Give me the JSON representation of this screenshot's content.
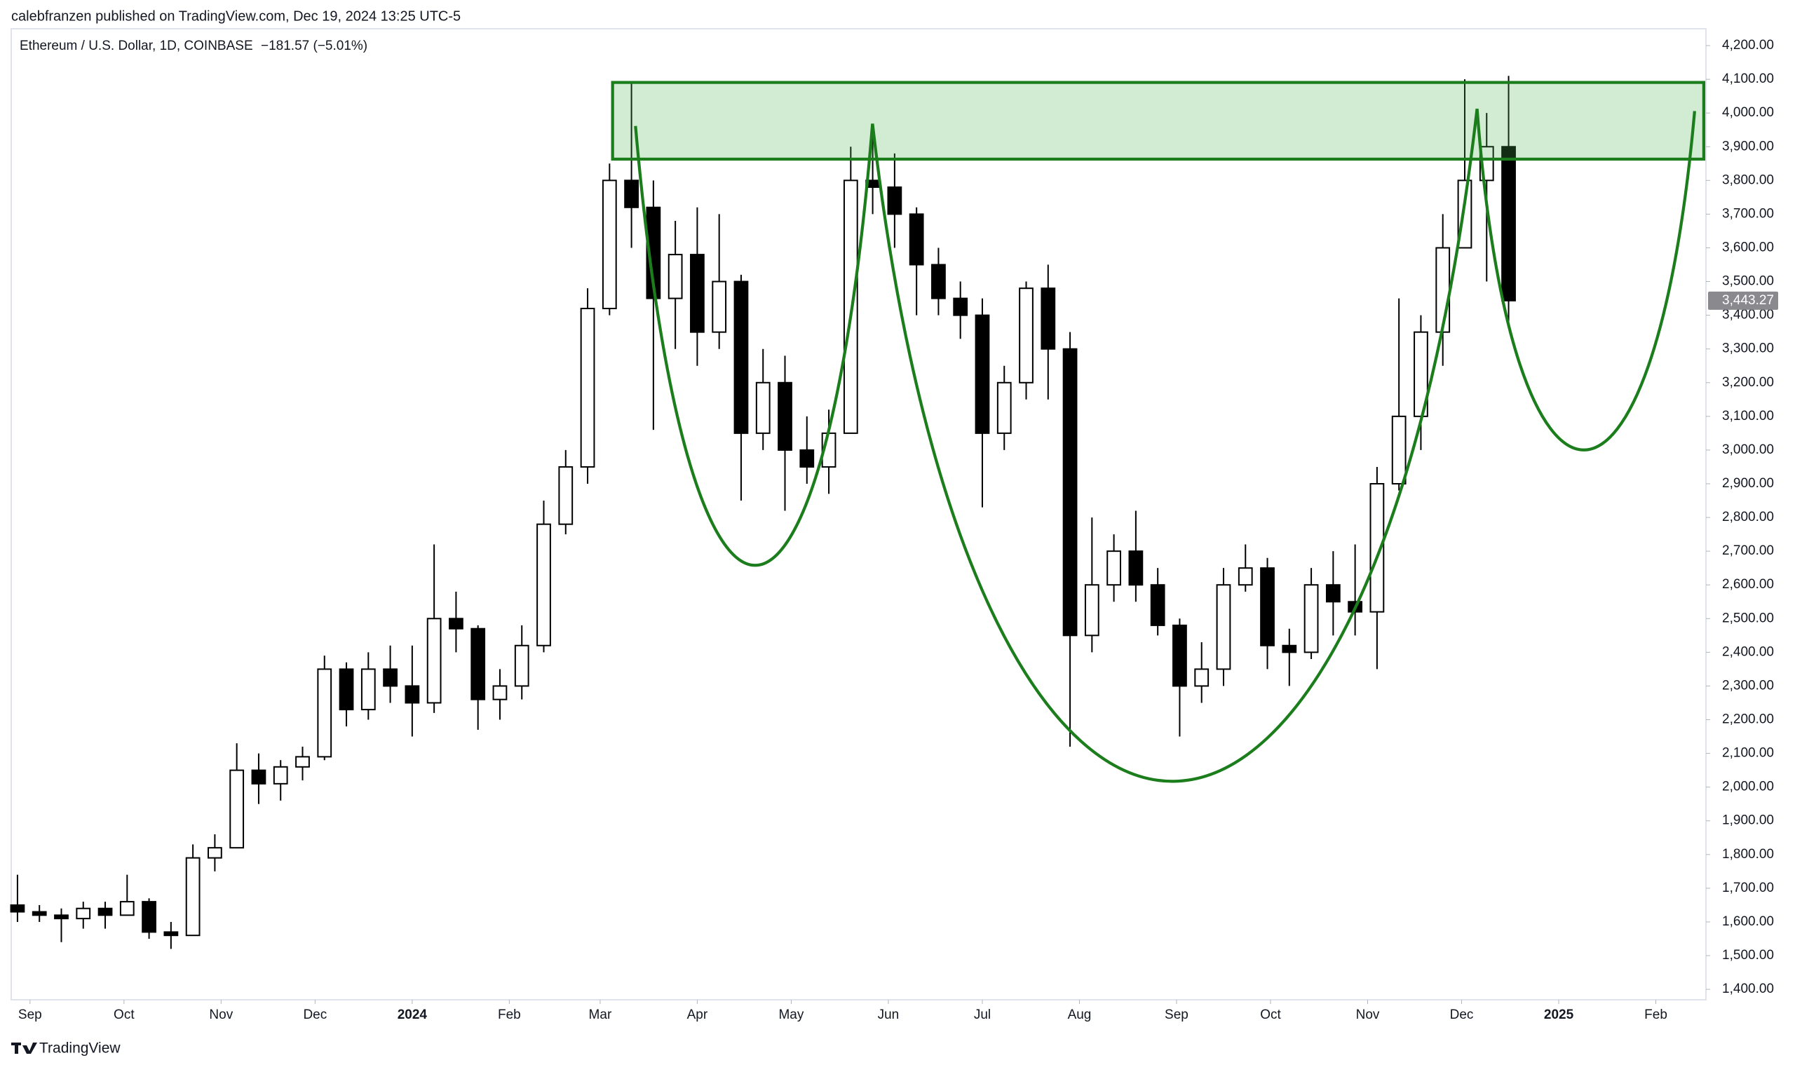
{
  "header": "calebfranzen published on TradingView.com, Dec 19, 2024 13:25 UTC-5",
  "footer": "TradingView",
  "chart_data": {
    "type": "candlestick",
    "title": "Ethereum / U.S. Dollar, 1D, COINBASE",
    "change": "−181.57 (−5.01%)",
    "x": [
      -4,
      3,
      10,
      17,
      24,
      31,
      38,
      45,
      52,
      59,
      66,
      73,
      80,
      87,
      94,
      101,
      108,
      115,
      122,
      129,
      136,
      143,
      150,
      157,
      164,
      171,
      178,
      185,
      192,
      199,
      206,
      213,
      220,
      227,
      234,
      241,
      248,
      255,
      262,
      269,
      276,
      283,
      290,
      297,
      304,
      311,
      318,
      325,
      332,
      339,
      346,
      353,
      360,
      367,
      374,
      381,
      388,
      395,
      402,
      409,
      416,
      423,
      430,
      437,
      444,
      451,
      458,
      465,
      472
    ],
    "open": [
      1650,
      1630,
      1620,
      1610,
      1640,
      1620,
      1660,
      1570,
      1560,
      1790,
      1820,
      2050,
      2010,
      2060,
      2090,
      2350,
      2230,
      2350,
      2300,
      2250,
      2500,
      2470,
      2260,
      2300,
      2420,
      2780,
      2950,
      3420,
      3800,
      3720,
      3450,
      3580,
      3350,
      3500,
      3050,
      3200,
      3000,
      2950,
      3050,
      3800,
      3780,
      3700,
      3550,
      3450,
      3400,
      3050,
      3200,
      3480,
      3300,
      2450,
      2600,
      2700,
      2600,
      2480,
      2300,
      2350,
      2600,
      2650,
      2420,
      2400,
      2600,
      2550,
      2520,
      2900,
      3100,
      3350,
      3600,
      3800,
      3900
    ],
    "high": [
      1740,
      1650,
      1640,
      1660,
      1660,
      1740,
      1670,
      1600,
      1830,
      1860,
      2130,
      2100,
      2080,
      2120,
      2390,
      2370,
      2400,
      2420,
      2420,
      2720,
      2580,
      2480,
      2350,
      2480,
      2850,
      3000,
      3480,
      3850,
      4090,
      3800,
      3680,
      3720,
      3700,
      3520,
      3300,
      3280,
      3100,
      3120,
      3900,
      3940,
      3880,
      3720,
      3600,
      3500,
      3450,
      3250,
      3500,
      3550,
      3350,
      2800,
      2750,
      2820,
      2650,
      2500,
      2430,
      2650,
      2720,
      2680,
      2470,
      2650,
      2700,
      2720,
      2950,
      3450,
      3400,
      3700,
      4100,
      4000,
      4110
    ],
    "low": [
      1600,
      1600,
      1540,
      1580,
      1580,
      1620,
      1550,
      1520,
      1560,
      1750,
      1820,
      1950,
      1960,
      2020,
      2080,
      2180,
      2200,
      2250,
      2150,
      2220,
      2400,
      2170,
      2200,
      2260,
      2400,
      2750,
      2900,
      3400,
      3600,
      3060,
      3300,
      3250,
      3300,
      2850,
      3000,
      2820,
      2900,
      2870,
      3050,
      3700,
      3600,
      3400,
      3400,
      3330,
      2830,
      3000,
      3150,
      3150,
      2120,
      2400,
      2550,
      2550,
      2450,
      2150,
      2250,
      2300,
      2580,
      2350,
      2300,
      2380,
      2450,
      2450,
      2350,
      2880,
      3000,
      3250,
      3600,
      3500,
      3380
    ],
    "close": [
      1630,
      1620,
      1610,
      1640,
      1620,
      1660,
      1570,
      1560,
      1790,
      1820,
      2050,
      2010,
      2060,
      2090,
      2350,
      2230,
      2350,
      2300,
      2250,
      2500,
      2470,
      2260,
      2300,
      2420,
      2780,
      2950,
      3420,
      3800,
      3720,
      3450,
      3580,
      3350,
      3500,
      3050,
      3200,
      3000,
      2950,
      3050,
      3800,
      3780,
      3700,
      3550,
      3450,
      3400,
      3050,
      3200,
      3480,
      3300,
      2450,
      2600,
      2700,
      2600,
      2480,
      2300,
      2350,
      2600,
      2650,
      2420,
      2400,
      2600,
      2550,
      2520,
      2900,
      3100,
      3350,
      3600,
      3800,
      3900,
      3443.27
    ],
    "last_price": {
      "value": 3443.27,
      "label": "3,443.27"
    },
    "xlim": [
      -6,
      535
    ],
    "xticks": [
      {
        "value": 0,
        "label": "Sep"
      },
      {
        "value": 30,
        "label": "Oct"
      },
      {
        "value": 61,
        "label": "Nov"
      },
      {
        "value": 91,
        "label": "Dec"
      },
      {
        "value": 122,
        "label": "2024"
      },
      {
        "value": 153,
        "label": "Feb"
      },
      {
        "value": 182,
        "label": "Mar"
      },
      {
        "value": 213,
        "label": "Apr"
      },
      {
        "value": 243,
        "label": "May"
      },
      {
        "value": 274,
        "label": "Jun"
      },
      {
        "value": 304,
        "label": "Jul"
      },
      {
        "value": 335,
        "label": "Aug"
      },
      {
        "value": 366,
        "label": "Sep"
      },
      {
        "value": 396,
        "label": "Oct"
      },
      {
        "value": 427,
        "label": "Nov"
      },
      {
        "value": 457,
        "label": "Dec"
      },
      {
        "value": 488,
        "label": "2025"
      },
      {
        "value": 519,
        "label": "Feb"
      }
    ],
    "ylim": [
      1369,
      4250
    ],
    "yticks": [
      {
        "value": 1400,
        "label": "1,400.00"
      },
      {
        "value": 1500,
        "label": "1,500.00"
      },
      {
        "value": 1600,
        "label": "1,600.00"
      },
      {
        "value": 1700,
        "label": "1,700.00"
      },
      {
        "value": 1800,
        "label": "1,800.00"
      },
      {
        "value": 1900,
        "label": "1,900.00"
      },
      {
        "value": 2000,
        "label": "2,000.00"
      },
      {
        "value": 2100,
        "label": "2,100.00"
      },
      {
        "value": 2200,
        "label": "2,200.00"
      },
      {
        "value": 2300,
        "label": "2,300.00"
      },
      {
        "value": 2400,
        "label": "2,400.00"
      },
      {
        "value": 2500,
        "label": "2,500.00"
      },
      {
        "value": 2600,
        "label": "2,600.00"
      },
      {
        "value": 2700,
        "label": "2,700.00"
      },
      {
        "value": 2800,
        "label": "2,800.00"
      },
      {
        "value": 2900,
        "label": "2,900.00"
      },
      {
        "value": 3000,
        "label": "3,000.00"
      },
      {
        "value": 3100,
        "label": "3,100.00"
      },
      {
        "value": 3200,
        "label": "3,200.00"
      },
      {
        "value": 3300,
        "label": "3,300.00"
      },
      {
        "value": 3400,
        "label": "3,400.00"
      },
      {
        "value": 3500,
        "label": "3,500.00"
      },
      {
        "value": 3600,
        "label": "3,600.00"
      },
      {
        "value": 3700,
        "label": "3,700.00"
      },
      {
        "value": 3800,
        "label": "3,800.00"
      },
      {
        "value": 3900,
        "label": "3,900.00"
      },
      {
        "value": 4000,
        "label": "4,000.00"
      },
      {
        "value": 4100,
        "label": "4,100.00"
      },
      {
        "value": 4200,
        "label": "4,200.00"
      }
    ],
    "up_color": "#ffffff",
    "down_color": "#000000",
    "grid": false
  }
}
